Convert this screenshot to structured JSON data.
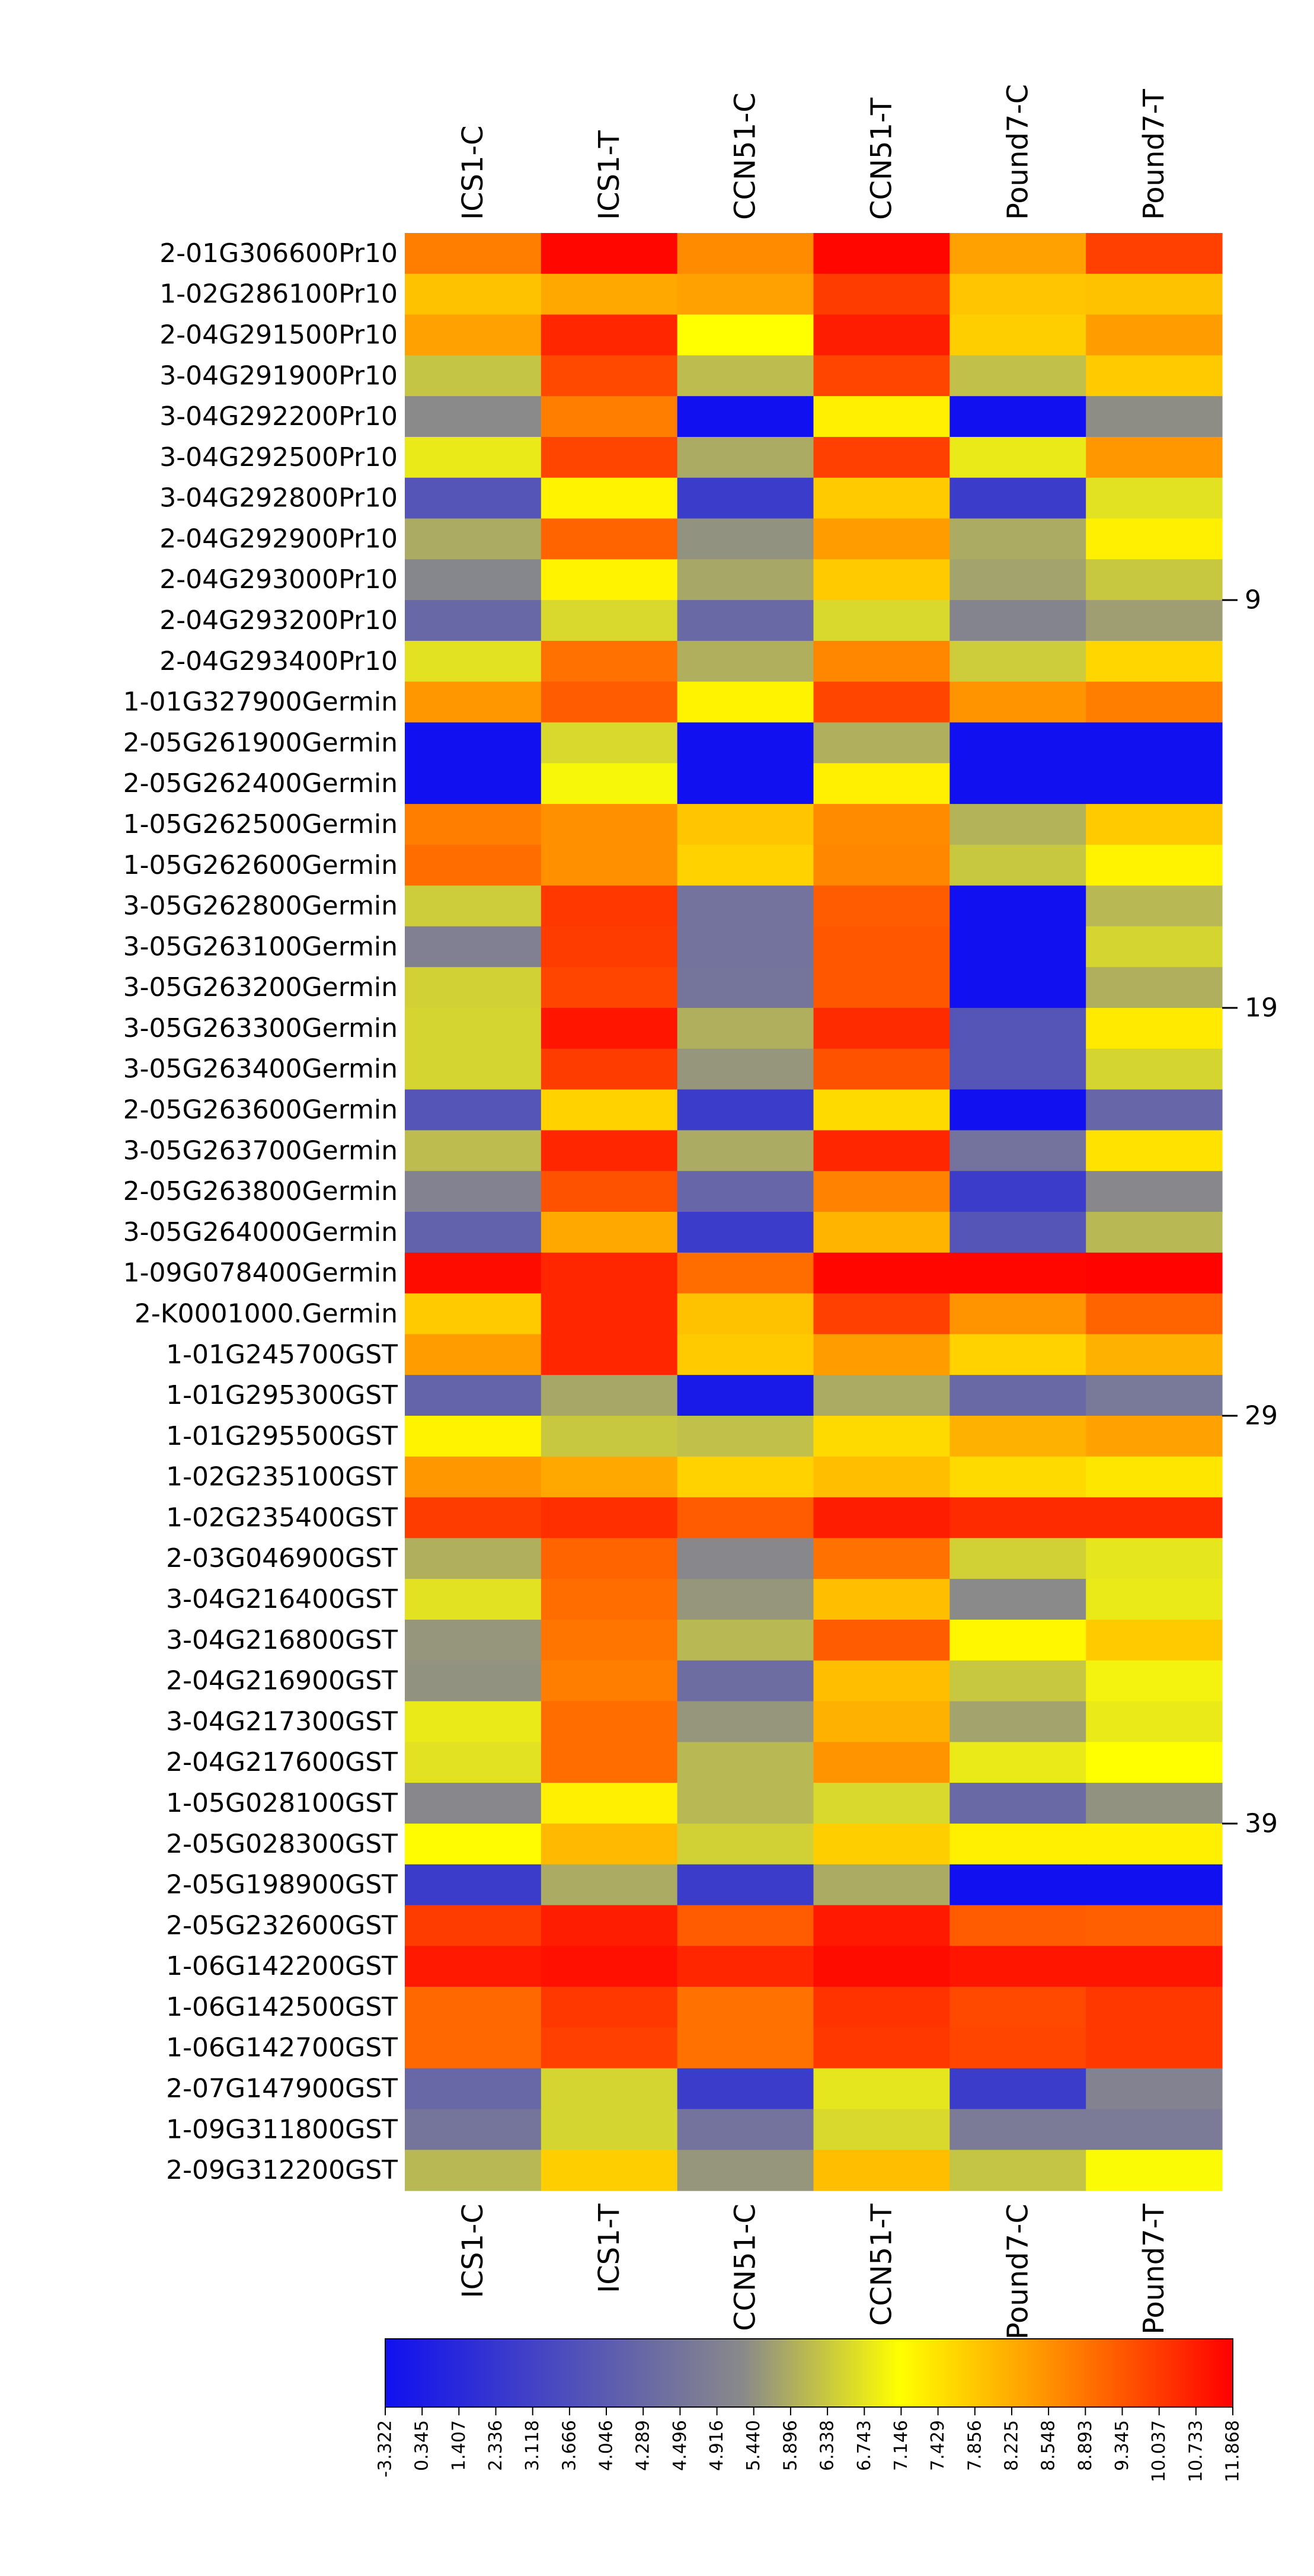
{
  "chart_data": {
    "type": "heatmap",
    "title": "",
    "xlabel": "",
    "ylabel": "",
    "columns": [
      "ICS1-C",
      "ICS1-T",
      "CCN51-C",
      "CCN51-T",
      "Pound7-C",
      "Pound7-T"
    ],
    "rows": [
      "2-01G306600Pr10",
      "1-02G286100Pr10",
      "2-04G291500Pr10",
      "3-04G291900Pr10",
      "3-04G292200Pr10",
      "3-04G292500Pr10",
      "3-04G292800Pr10",
      "2-04G292900Pr10",
      "2-04G293000Pr10",
      "2-04G293200Pr10",
      "2-04G293400Pr10",
      "1-01G327900Germin",
      "2-05G261900Germin",
      "2-05G262400Germin",
      "1-05G262500Germin",
      "1-05G262600Germin",
      "3-05G262800Germin",
      "3-05G263100Germin",
      "3-05G263200Germin",
      "3-05G263300Germin",
      "3-05G263400Germin",
      "2-05G263600Germin",
      "3-05G263700Germin",
      "2-05G263800Germin",
      "3-05G264000Germin",
      "1-09G078400Germin",
      "2-K0001000.Germin",
      "1-01G245700GST",
      "1-01G295300GST",
      "1-01G295500GST",
      "1-02G235100GST",
      "1-02G235400GST",
      "2-03G046900GST",
      "3-04G216400GST",
      "3-04G216800GST",
      "2-04G216900GST",
      "3-04G217300GST",
      "2-04G217600GST",
      "1-05G028100GST",
      "2-05G028300GST",
      "2-05G198900GST",
      "2-05G232600GST",
      "1-06G142200GST",
      "1-06G142500GST",
      "1-06G142700GST",
      "2-07G147900GST",
      "1-09G311800GST",
      "2-09G312200GST"
    ],
    "values": [
      [
        9.0,
        11.7,
        8.7,
        11.7,
        8.2,
        10.4
      ],
      [
        7.4,
        8.0,
        8.2,
        10.5,
        7.3,
        7.4
      ],
      [
        8.2,
        11.0,
        5.9,
        11.2,
        7.1,
        8.3
      ],
      [
        4.5,
        10.2,
        4.3,
        10.3,
        4.4,
        7.2
      ],
      [
        3.1,
        9.0,
        -3.3,
        6.3,
        -3.3,
        3.2
      ],
      [
        5.4,
        10.3,
        3.9,
        10.4,
        5.4,
        8.4
      ],
      [
        0.3,
        6.2,
        -1.0,
        7.2,
        -1.0,
        5.2
      ],
      [
        3.9,
        9.6,
        3.3,
        8.3,
        3.9,
        6.3
      ],
      [
        2.9,
        6.2,
        3.8,
        7.2,
        3.7,
        4.6
      ],
      [
        1.3,
        5.0,
        1.4,
        5.0,
        2.8,
        3.6
      ],
      [
        5.2,
        9.3,
        4.0,
        8.8,
        4.7,
        6.9
      ],
      [
        8.4,
        9.8,
        6.2,
        10.3,
        8.5,
        9.0
      ],
      [
        -3.3,
        5.0,
        -3.3,
        4.0,
        -3.3,
        -3.3
      ],
      [
        -3.3,
        5.7,
        -3.3,
        6.3,
        -3.3,
        -3.3
      ],
      [
        9.0,
        8.6,
        7.3,
        8.7,
        4.1,
        7.2
      ],
      [
        9.4,
        8.6,
        7.0,
        8.8,
        4.6,
        6.2
      ],
      [
        4.7,
        10.6,
        1.9,
        9.8,
        -3.3,
        4.2
      ],
      [
        2.6,
        10.5,
        1.9,
        9.9,
        -3.3,
        4.9
      ],
      [
        4.8,
        10.3,
        2.0,
        9.9,
        -3.3,
        4.0
      ],
      [
        4.9,
        11.4,
        4.0,
        10.9,
        0.3,
        6.4
      ],
      [
        4.9,
        10.5,
        3.4,
        10.0,
        0.3,
        4.9
      ],
      [
        0.3,
        7.0,
        -1.0,
        6.8,
        -3.3,
        1.2
      ],
      [
        4.3,
        11.0,
        3.9,
        11.0,
        1.9,
        6.6
      ],
      [
        2.7,
        10.0,
        1.2,
        8.9,
        -1.0,
        3.0
      ],
      [
        1.0,
        8.0,
        -1.0,
        7.7,
        0.3,
        4.2
      ],
      [
        11.6,
        11.0,
        9.4,
        11.7,
        11.7,
        11.8
      ],
      [
        7.2,
        11.0,
        7.4,
        10.4,
        8.5,
        9.6
      ],
      [
        8.3,
        11.0,
        7.2,
        8.3,
        7.0,
        7.8
      ],
      [
        1.1,
        3.8,
        -2.8,
        3.9,
        1.4,
        2.2
      ],
      [
        6.2,
        4.6,
        4.4,
        6.8,
        7.8,
        8.2
      ],
      [
        8.4,
        8.0,
        7.0,
        7.5,
        6.8,
        6.5
      ],
      [
        10.5,
        10.8,
        9.8,
        11.2,
        10.9,
        10.9
      ],
      [
        4.0,
        9.6,
        3.0,
        9.3,
        4.8,
        5.3
      ],
      [
        5.2,
        9.4,
        3.4,
        7.5,
        3.1,
        5.4
      ],
      [
        3.4,
        9.2,
        4.2,
        9.8,
        6.1,
        7.2
      ],
      [
        3.3,
        9.0,
        1.6,
        7.5,
        4.6,
        5.6
      ],
      [
        5.4,
        9.4,
        3.4,
        7.8,
        3.7,
        5.4
      ],
      [
        5.2,
        9.4,
        4.2,
        8.5,
        5.4,
        5.9
      ],
      [
        3.0,
        6.3,
        4.2,
        5.0,
        1.4,
        3.3
      ],
      [
        6.0,
        7.6,
        4.8,
        7.1,
        6.3,
        6.3
      ],
      [
        -1.0,
        3.9,
        -1.0,
        3.9,
        -3.3,
        -3.3
      ],
      [
        10.5,
        11.2,
        9.8,
        11.3,
        9.8,
        9.7
      ],
      [
        11.3,
        11.5,
        11.0,
        11.6,
        11.4,
        11.4
      ],
      [
        9.5,
        10.6,
        9.3,
        10.7,
        10.2,
        10.6
      ],
      [
        9.5,
        10.4,
        9.3,
        10.6,
        10.3,
        10.6
      ],
      [
        1.3,
        4.9,
        -1.0,
        5.3,
        -1.0,
        2.7
      ],
      [
        2.0,
        4.9,
        1.9,
        5.0,
        2.3,
        2.3
      ],
      [
        4.2,
        7.1,
        3.4,
        7.5,
        4.5,
        5.8
      ]
    ],
    "row_markers": [
      {
        "after_row": 9,
        "label": "9"
      },
      {
        "after_row": 19,
        "label": "19"
      },
      {
        "after_row": 29,
        "label": "29"
      },
      {
        "after_row": 39,
        "label": "39"
      }
    ],
    "color_scale": {
      "min": -3.322,
      "max": 11.868,
      "stops": [
        {
          "value": -3.322,
          "color": "#1010f0"
        },
        {
          "value": 3.118,
          "color": "#8a8a8a"
        },
        {
          "value": 5.896,
          "color": "#ffff00"
        },
        {
          "value": 8.225,
          "color": "#ffa000"
        },
        {
          "value": 11.868,
          "color": "#ff0000"
        }
      ],
      "ticks": [
        "-3.322",
        "0.345",
        "1.407",
        "2.336",
        "3.118",
        "3.666",
        "4.046",
        "4.289",
        "4.496",
        "4.916",
        "5.440",
        "5.896",
        "6.338",
        "6.743",
        "7.146",
        "7.429",
        "7.856",
        "8.225",
        "8.548",
        "8.893",
        "9.345",
        "10.037",
        "10.733",
        "11.868"
      ]
    },
    "legend_placement": "bottom"
  }
}
